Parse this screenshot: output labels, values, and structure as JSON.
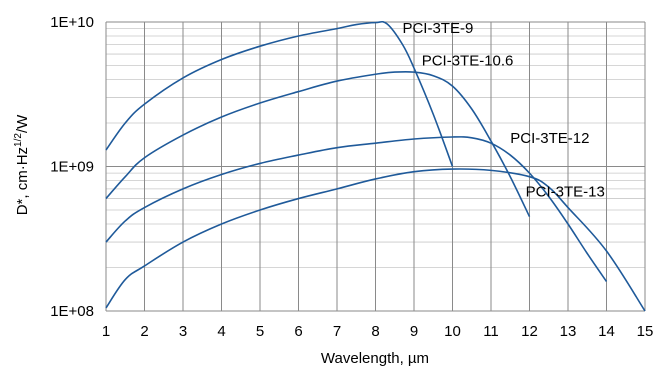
{
  "chart_data": {
    "type": "line",
    "title": "",
    "xlabel": "Wavelength, µm",
    "ylabel": "D*, cm·Hz1/2/W",
    "ylabel_main": "D*, cm·Hz",
    "ylabel_sup": "1/2",
    "ylabel_tail": "/W",
    "xlim": [
      1,
      15
    ],
    "ylim": [
      100000000,
      10000000000
    ],
    "yscale": "log",
    "grid": true,
    "legend": "inline labels",
    "xticks": [
      "1",
      "2",
      "3",
      "4",
      "5",
      "6",
      "7",
      "8",
      "9",
      "10",
      "11",
      "12",
      "13",
      "14",
      "15"
    ],
    "yticks": [
      "1E+08",
      "1E+09",
      "1E+10"
    ],
    "line_color": "#1f5a9a",
    "series": [
      {
        "name": "PCI-3TE-9",
        "x": [
          1,
          1.5,
          2,
          3,
          4,
          5,
          6,
          7,
          7.5,
          8,
          8.3,
          8.7,
          9,
          9.5,
          10
        ],
        "y": [
          1300000000,
          2000000000,
          2700000000,
          4100000000,
          5500000000,
          6800000000,
          8000000000,
          9000000000,
          9600000000,
          9900000000,
          9700000000,
          7000000000,
          4800000000,
          2300000000,
          1000000000
        ]
      },
      {
        "name": "PCI-3TE-10.6",
        "x": [
          1,
          1.5,
          2,
          3,
          4,
          5,
          6,
          7,
          8,
          8.5,
          9,
          9.5,
          10,
          10.5,
          11,
          11.5,
          12
        ],
        "y": [
          600000000,
          850000000,
          1150000000,
          1650000000,
          2200000000,
          2750000000,
          3300000000,
          3900000000,
          4350000000,
          4500000000,
          4500000000,
          4250000000,
          3600000000,
          2500000000,
          1500000000,
          850000000,
          450000000
        ]
      },
      {
        "name": "PCI-3TE-12",
        "x": [
          1,
          1.5,
          2,
          3,
          4,
          5,
          6,
          7,
          8,
          9,
          10,
          10.5,
          11,
          11.5,
          12,
          12.5,
          13,
          13.5,
          14
        ],
        "y": [
          300000000,
          420000000,
          520000000,
          700000000,
          880000000,
          1050000000,
          1200000000,
          1350000000,
          1450000000,
          1550000000,
          1600000000,
          1580000000,
          1450000000,
          1200000000,
          900000000,
          620000000,
          400000000,
          250000000,
          160000000
        ]
      },
      {
        "name": "PCI-3TE-13",
        "x": [
          1,
          1.5,
          2,
          3,
          4,
          5,
          6,
          7,
          8,
          9,
          10,
          11,
          12,
          12.5,
          13,
          14,
          15
        ],
        "y": [
          105000000,
          165000000,
          205000000,
          300000000,
          400000000,
          500000000,
          600000000,
          700000000,
          820000000,
          920000000,
          960000000,
          940000000,
          850000000,
          720000000,
          520000000,
          260000000,
          100000000
        ]
      }
    ],
    "labels": [
      {
        "text": "PCI-3TE-9",
        "x": 8.7,
        "y": 8400000000
      },
      {
        "text": "PCI-3TE-10.6",
        "x": 9.2,
        "y": 5000000000
      },
      {
        "text": "PCI-3TE-12",
        "x": 11.5,
        "y": 1450000000
      },
      {
        "text": "PCI-3TE-13",
        "x": 11.9,
        "y": 620000000
      }
    ]
  }
}
